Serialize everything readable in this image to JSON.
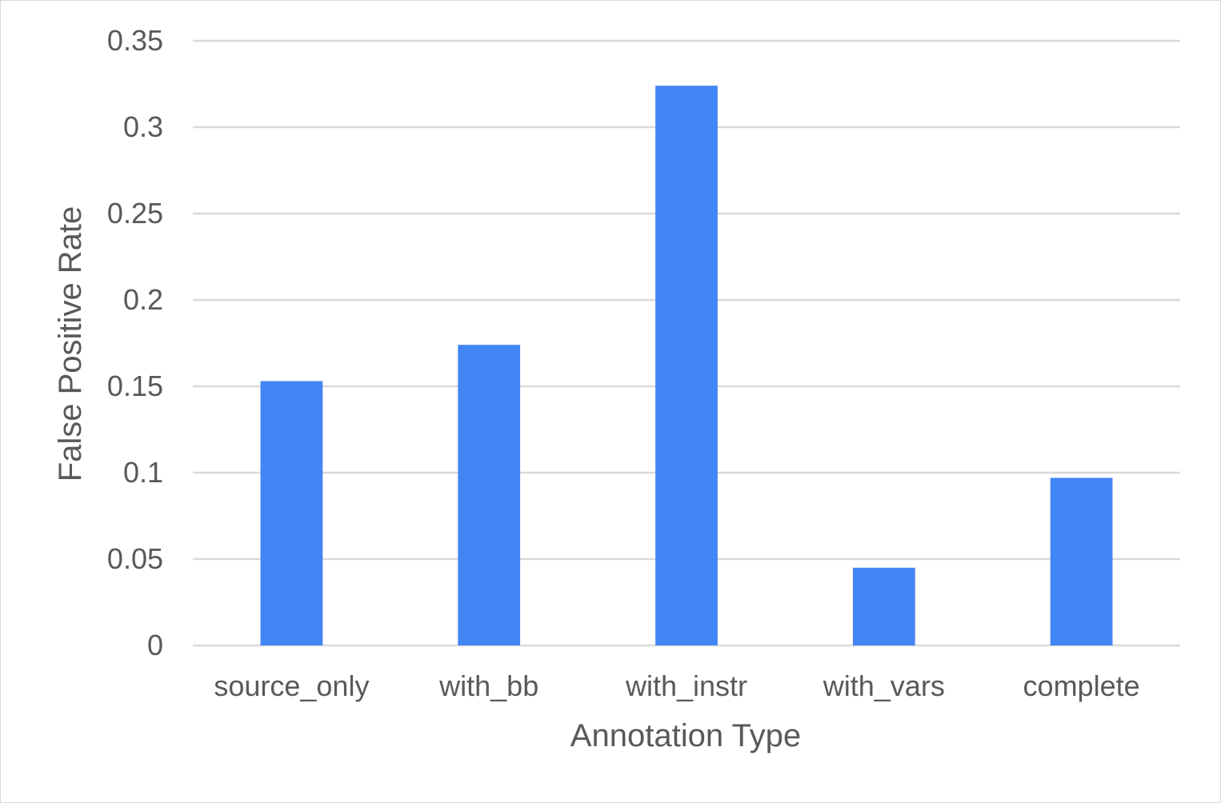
{
  "chart_data": {
    "type": "bar",
    "title": "",
    "xlabel": "Annotation Type",
    "ylabel": "False Positive Rate",
    "categories": [
      "source_only",
      "with_bb",
      "with_instr",
      "with_vars",
      "complete"
    ],
    "values": [
      0.153,
      0.174,
      0.324,
      0.045,
      0.097
    ],
    "ylim": [
      0,
      0.35
    ],
    "yticks": [
      0,
      0.05,
      0.1,
      0.15,
      0.2,
      0.25,
      0.3,
      0.35
    ],
    "ytick_labels": [
      "0",
      "0.05",
      "0.1",
      "0.15",
      "0.2",
      "0.25",
      "0.3",
      "0.35"
    ],
    "grid": true,
    "legend": "none",
    "bar_color": "#4285f4"
  }
}
